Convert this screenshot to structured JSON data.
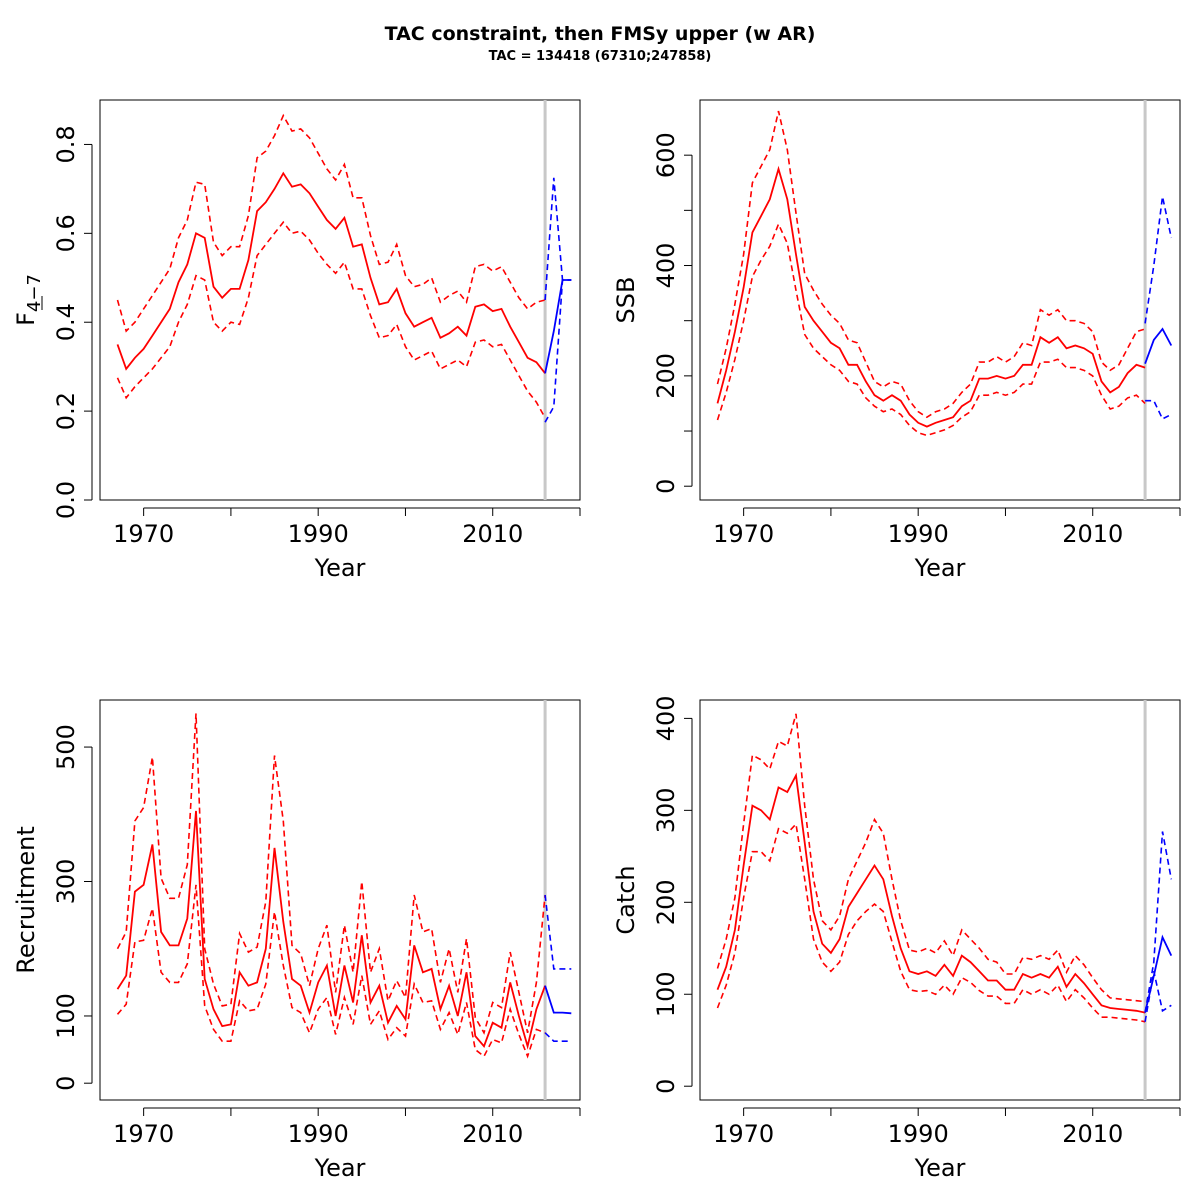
{
  "title": "TAC constraint, then FMSy upper (w AR)",
  "subtitle": "TAC = 134418 (67310;247858)",
  "colors": {
    "historical": "#ff0000",
    "forecast": "#0000ff",
    "divider": "#c8c8c8"
  },
  "chart_data": [
    {
      "type": "line",
      "name": "fbar",
      "xlabel": "Year",
      "ylabel": "F 4-7",
      "ylabel_main": "F",
      "ylabel_sub": "4−7",
      "xlim": [
        1965,
        2020
      ],
      "ylim": [
        0,
        0.9
      ],
      "xticks": [
        1970,
        1980,
        1990,
        2000,
        2010,
        2020
      ],
      "xtick_labels": [
        "1970",
        "",
        "1990",
        "",
        "2010",
        ""
      ],
      "yticks": [
        0,
        0.2,
        0.4,
        0.6,
        0.8
      ],
      "ytick_labels": [
        "0.0",
        "0.2",
        "0.4",
        "0.6",
        "0.8"
      ],
      "divider_year": 2016,
      "x": [
        1967,
        1968,
        1969,
        1970,
        1971,
        1972,
        1973,
        1974,
        1975,
        1976,
        1977,
        1978,
        1979,
        1980,
        1981,
        1982,
        1983,
        1984,
        1985,
        1986,
        1987,
        1988,
        1989,
        1990,
        1991,
        1992,
        1993,
        1994,
        1995,
        1996,
        1997,
        1998,
        1999,
        2000,
        2001,
        2002,
        2003,
        2004,
        2005,
        2006,
        2007,
        2008,
        2009,
        2010,
        2011,
        2012,
        2013,
        2014,
        2015,
        2016
      ],
      "estimate": [
        0.35,
        0.295,
        0.32,
        0.34,
        0.37,
        0.4,
        0.43,
        0.49,
        0.53,
        0.6,
        0.59,
        0.48,
        0.455,
        0.475,
        0.475,
        0.54,
        0.65,
        0.67,
        0.7,
        0.735,
        0.705,
        0.71,
        0.69,
        0.66,
        0.63,
        0.61,
        0.635,
        0.57,
        0.575,
        0.5,
        0.44,
        0.445,
        0.475,
        0.42,
        0.39,
        0.4,
        0.41,
        0.365,
        0.375,
        0.39,
        0.37,
        0.435,
        0.44,
        0.425,
        0.43,
        0.39,
        0.355,
        0.32,
        0.31,
        0.285
      ],
      "upper": [
        0.45,
        0.38,
        0.4,
        0.43,
        0.46,
        0.49,
        0.52,
        0.59,
        0.63,
        0.715,
        0.71,
        0.58,
        0.55,
        0.57,
        0.57,
        0.64,
        0.77,
        0.785,
        0.82,
        0.865,
        0.83,
        0.835,
        0.815,
        0.78,
        0.745,
        0.72,
        0.755,
        0.68,
        0.68,
        0.595,
        0.53,
        0.535,
        0.575,
        0.505,
        0.48,
        0.485,
        0.5,
        0.445,
        0.46,
        0.47,
        0.445,
        0.525,
        0.53,
        0.515,
        0.525,
        0.49,
        0.455,
        0.43,
        0.445,
        0.45
      ],
      "lower": [
        0.275,
        0.23,
        0.255,
        0.275,
        0.295,
        0.32,
        0.345,
        0.4,
        0.44,
        0.505,
        0.495,
        0.4,
        0.38,
        0.4,
        0.395,
        0.455,
        0.55,
        0.575,
        0.6,
        0.625,
        0.6,
        0.605,
        0.585,
        0.555,
        0.53,
        0.51,
        0.535,
        0.475,
        0.475,
        0.415,
        0.365,
        0.37,
        0.395,
        0.345,
        0.315,
        0.325,
        0.335,
        0.295,
        0.305,
        0.315,
        0.3,
        0.355,
        0.36,
        0.345,
        0.35,
        0.315,
        0.28,
        0.245,
        0.22,
        0.185
      ],
      "forecast_x": [
        2016,
        2017,
        2018,
        2019
      ],
      "forecast_estimate": [
        0.285,
        0.38,
        0.495,
        0.495
      ],
      "forecast_upper": [
        0.45,
        0.725,
        0.495,
        0.495
      ],
      "forecast_lower": [
        0.175,
        0.21,
        0.495,
        0.495
      ]
    },
    {
      "type": "line",
      "name": "ssb",
      "xlabel": "Year",
      "ylabel": "SSB",
      "xlim": [
        1965,
        2020
      ],
      "ylim": [
        -25,
        700
      ],
      "xticks": [
        1970,
        1980,
        1990,
        2000,
        2010,
        2020
      ],
      "xtick_labels": [
        "1970",
        "",
        "1990",
        "",
        "2010",
        ""
      ],
      "yticks": [
        0,
        100,
        200,
        300,
        400,
        500,
        600
      ],
      "ytick_labels": [
        "0",
        "",
        "200",
        "",
        "400",
        "",
        "600"
      ],
      "divider_year": 2016,
      "x": [
        1967,
        1968,
        1969,
        1970,
        1971,
        1972,
        1973,
        1974,
        1975,
        1976,
        1977,
        1978,
        1979,
        1980,
        1981,
        1982,
        1983,
        1984,
        1985,
        1986,
        1987,
        1988,
        1989,
        1990,
        1991,
        1992,
        1993,
        1994,
        1995,
        1996,
        1997,
        1998,
        1999,
        2000,
        2001,
        2002,
        2003,
        2004,
        2005,
        2006,
        2007,
        2008,
        2009,
        2010,
        2011,
        2012,
        2013,
        2014,
        2015,
        2016
      ],
      "estimate": [
        150,
        210,
        280,
        360,
        460,
        490,
        520,
        575,
        520,
        420,
        325,
        300,
        280,
        260,
        250,
        220,
        220,
        190,
        165,
        155,
        165,
        155,
        130,
        115,
        108,
        115,
        120,
        125,
        145,
        155,
        195,
        195,
        200,
        195,
        200,
        220,
        220,
        270,
        260,
        270,
        250,
        255,
        250,
        240,
        190,
        170,
        180,
        205,
        220,
        215
      ],
      "upper": [
        185,
        250,
        330,
        420,
        550,
        580,
        610,
        680,
        610,
        495,
        385,
        355,
        330,
        310,
        295,
        265,
        260,
        225,
        190,
        180,
        190,
        185,
        155,
        135,
        125,
        135,
        140,
        150,
        170,
        185,
        225,
        225,
        235,
        225,
        235,
        260,
        255,
        320,
        310,
        320,
        300,
        300,
        295,
        280,
        225,
        210,
        220,
        250,
        280,
        285
      ],
      "lower": [
        120,
        170,
        230,
        300,
        380,
        410,
        435,
        475,
        440,
        355,
        275,
        250,
        235,
        220,
        210,
        190,
        185,
        160,
        145,
        135,
        140,
        130,
        110,
        97,
        92,
        97,
        102,
        110,
        125,
        135,
        165,
        165,
        170,
        165,
        170,
        185,
        185,
        225,
        225,
        230,
        215,
        215,
        210,
        200,
        165,
        140,
        145,
        160,
        165,
        150
      ],
      "forecast_x": [
        2016,
        2017,
        2018,
        2019
      ],
      "forecast_estimate": [
        222,
        265,
        285,
        255
      ],
      "forecast_upper": [
        295,
        400,
        525,
        450
      ],
      "forecast_lower": [
        155,
        155,
        122,
        130
      ]
    },
    {
      "type": "line",
      "name": "recruitment",
      "xlabel": "Year",
      "ylabel": "Recruitment",
      "xlim": [
        1965,
        2020
      ],
      "ylim": [
        -50,
        1140
      ],
      "xticks": [
        1970,
        1980,
        1990,
        2000,
        2010,
        2020
      ],
      "xtick_labels": [
        "1970",
        "",
        "1990",
        "",
        "2010",
        ""
      ],
      "yticks": [
        0,
        100,
        300,
        500
      ],
      "ytick_labels": [
        "0",
        "100",
        "300",
        "500"
      ],
      "ytick_values": [
        0,
        200,
        600,
        1000
      ],
      "divider_year": 2016,
      "x": [
        1967,
        1968,
        1969,
        1970,
        1971,
        1972,
        1973,
        1974,
        1975,
        1976,
        1977,
        1978,
        1979,
        1980,
        1981,
        1982,
        1983,
        1984,
        1985,
        1986,
        1987,
        1988,
        1989,
        1990,
        1991,
        1992,
        1993,
        1994,
        1995,
        1996,
        1997,
        1998,
        1999,
        2000,
        2001,
        2002,
        2003,
        2004,
        2005,
        2006,
        2007,
        2008,
        2009,
        2010,
        2011,
        2012,
        2013,
        2014,
        2015,
        2016
      ],
      "estimate": [
        280,
        320,
        570,
        590,
        710,
        450,
        410,
        410,
        490,
        810,
        310,
        220,
        170,
        175,
        330,
        290,
        300,
        400,
        700,
        480,
        310,
        290,
        210,
        300,
        350,
        200,
        350,
        240,
        440,
        240,
        290,
        180,
        230,
        190,
        410,
        330,
        340,
        220,
        290,
        200,
        330,
        140,
        110,
        180,
        165,
        300,
        200,
        110,
        220,
        290
      ],
      "upper": [
        400,
        450,
        780,
        820,
        970,
        610,
        550,
        550,
        650,
        1100,
        400,
        295,
        230,
        235,
        445,
        390,
        405,
        540,
        975,
        780,
        410,
        385,
        290,
        400,
        470,
        270,
        470,
        330,
        600,
        330,
        400,
        245,
        305,
        255,
        560,
        450,
        460,
        300,
        400,
        270,
        430,
        195,
        150,
        240,
        225,
        390,
        270,
        150,
        300,
        560
      ],
      "lower": [
        205,
        235,
        420,
        425,
        520,
        330,
        300,
        300,
        355,
        590,
        230,
        160,
        125,
        125,
        245,
        215,
        220,
        295,
        510,
        350,
        225,
        210,
        150,
        220,
        255,
        145,
        255,
        175,
        320,
        175,
        215,
        130,
        165,
        140,
        295,
        240,
        245,
        160,
        210,
        145,
        240,
        100,
        80,
        130,
        120,
        220,
        145,
        80,
        160,
        150
      ],
      "forecast_x": [
        2016,
        2017,
        2018,
        2019
      ],
      "forecast_estimate": [
        290,
        210,
        210,
        208
      ],
      "forecast_upper": [
        560,
        340,
        340,
        340
      ],
      "forecast_lower": [
        150,
        125,
        125,
        125
      ]
    },
    {
      "type": "line",
      "name": "catch",
      "xlabel": "Year",
      "ylabel": "Catch",
      "xlim": [
        1965,
        2020
      ],
      "ylim": [
        -15,
        420
      ],
      "xticks": [
        1970,
        1980,
        1990,
        2000,
        2010,
        2020
      ],
      "xtick_labels": [
        "1970",
        "",
        "1990",
        "",
        "2010",
        ""
      ],
      "yticks": [
        0,
        100,
        200,
        300,
        400
      ],
      "ytick_labels": [
        "0",
        "100",
        "200",
        "300",
        "400"
      ],
      "divider_year": 2016,
      "x": [
        1967,
        1968,
        1969,
        1970,
        1971,
        1972,
        1973,
        1974,
        1975,
        1976,
        1977,
        1978,
        1979,
        1980,
        1981,
        1982,
        1983,
        1984,
        1985,
        1986,
        1987,
        1988,
        1989,
        1990,
        1991,
        1992,
        1993,
        1994,
        1995,
        1996,
        1997,
        1998,
        1999,
        2000,
        2001,
        2002,
        2003,
        2004,
        2005,
        2006,
        2007,
        2008,
        2009,
        2010,
        2011,
        2012,
        2013,
        2014,
        2015,
        2016
      ],
      "estimate": [
        105,
        130,
        170,
        240,
        305,
        300,
        290,
        325,
        320,
        338,
        265,
        190,
        155,
        145,
        160,
        195,
        210,
        225,
        240,
        225,
        185,
        150,
        125,
        122,
        125,
        120,
        132,
        120,
        142,
        135,
        125,
        115,
        115,
        105,
        105,
        122,
        118,
        122,
        118,
        130,
        108,
        122,
        112,
        100,
        88,
        85,
        84,
        83,
        82,
        80
      ],
      "upper": [
        128,
        160,
        205,
        285,
        360,
        355,
        345,
        375,
        370,
        405,
        305,
        225,
        180,
        170,
        185,
        225,
        245,
        265,
        290,
        275,
        225,
        180,
        148,
        146,
        150,
        145,
        158,
        142,
        170,
        160,
        150,
        138,
        135,
        122,
        122,
        140,
        138,
        142,
        138,
        148,
        124,
        142,
        132,
        118,
        105,
        96,
        95,
        94,
        93,
        92
      ],
      "lower": [
        85,
        110,
        145,
        205,
        255,
        255,
        245,
        280,
        275,
        285,
        225,
        160,
        135,
        125,
        135,
        165,
        180,
        190,
        198,
        190,
        157,
        125,
        105,
        103,
        104,
        100,
        110,
        100,
        118,
        113,
        104,
        98,
        98,
        90,
        90,
        105,
        100,
        105,
        100,
        110,
        92,
        105,
        96,
        85,
        75,
        75,
        74,
        73,
        72,
        70
      ],
      "forecast_x": [
        2016,
        2017,
        2018,
        2019
      ],
      "forecast_estimate": [
        80,
        120,
        162,
        142
      ],
      "forecast_upper": [
        80,
        135,
        277,
        225
      ],
      "forecast_lower": [
        70,
        125,
        82,
        88
      ]
    }
  ]
}
